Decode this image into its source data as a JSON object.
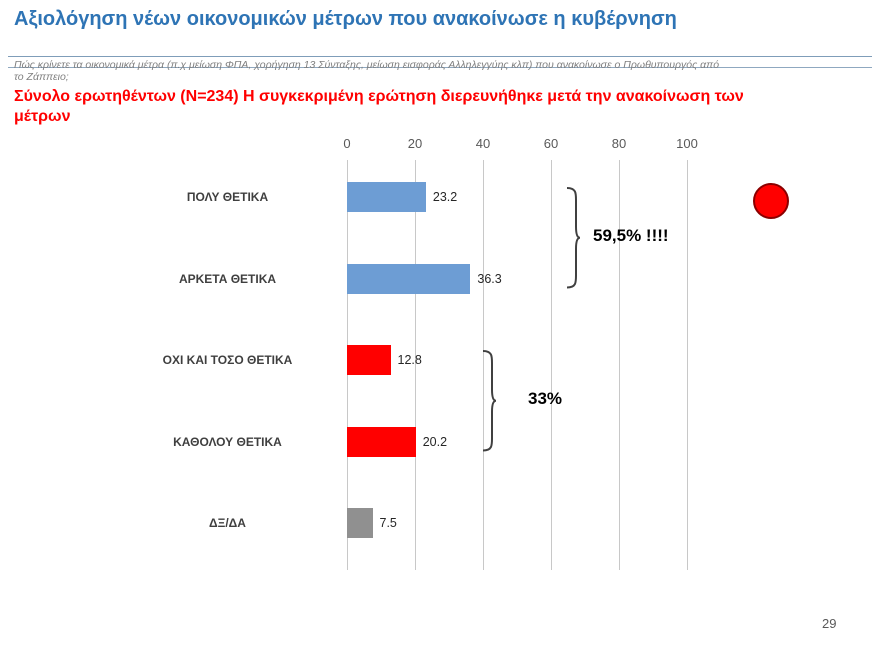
{
  "slide": {
    "title": "Αξιολόγηση νέων οικονομικών μέτρων που ανακοίνωσε η κυβέρνηση",
    "subtitle_lines": [
      "Πώς κρίνετε τα οικονομικά μέτρα (π.χ μείωση ΦΠΑ, χορήγηση 13 Σύνταξης, μείωση εισφοράς Αλληλεγγύης κλπ) που ανακοίνωσε ο Πρωθυπουργός από",
      "το Ζάππειο;"
    ],
    "note_lines": [
      "Σύνολο ερωτηθέντων (N=234) Η συγκεκριμένη ερώτηση διερευνήθηκε μετά την ανακοίνωση των",
      "μέτρων"
    ],
    "page_number": "29"
  },
  "chart_data": {
    "type": "bar",
    "orientation": "horizontal",
    "title": "",
    "xlabel": "",
    "ylabel": "",
    "categories": [
      "ΠΟΛΥ ΘΕΤΙΚΑ",
      "ΑΡΚΕΤΑ ΘΕΤΙΚΑ",
      "ΟΧΙ ΚΑΙ ΤΟΣΟ ΘΕΤΙΚΑ",
      "ΚΑΘΟΛΟΥ ΘΕΤΙΚΑ",
      "ΔΞ/ΔΑ"
    ],
    "values": [
      23.2,
      36.3,
      12.8,
      20.2,
      7.5
    ],
    "value_labels": [
      "23.2",
      "36.3",
      "12.8",
      "20.2",
      "7.5"
    ],
    "bar_colors": [
      "#6D9DD4",
      "#6D9DD4",
      "#FF0000",
      "#FF0000",
      "#909090"
    ],
    "xlim": [
      0,
      100
    ],
    "x_ticks": [
      0,
      20,
      40,
      60,
      80,
      100
    ],
    "grid": true,
    "legend": "none",
    "annotations": [
      {
        "label": "59,5% !!!!",
        "groups": [
          0,
          1
        ]
      },
      {
        "label": "33%",
        "groups": [
          2,
          3
        ]
      }
    ]
  },
  "decorations": {
    "red_circle_color": "#FF0000"
  }
}
